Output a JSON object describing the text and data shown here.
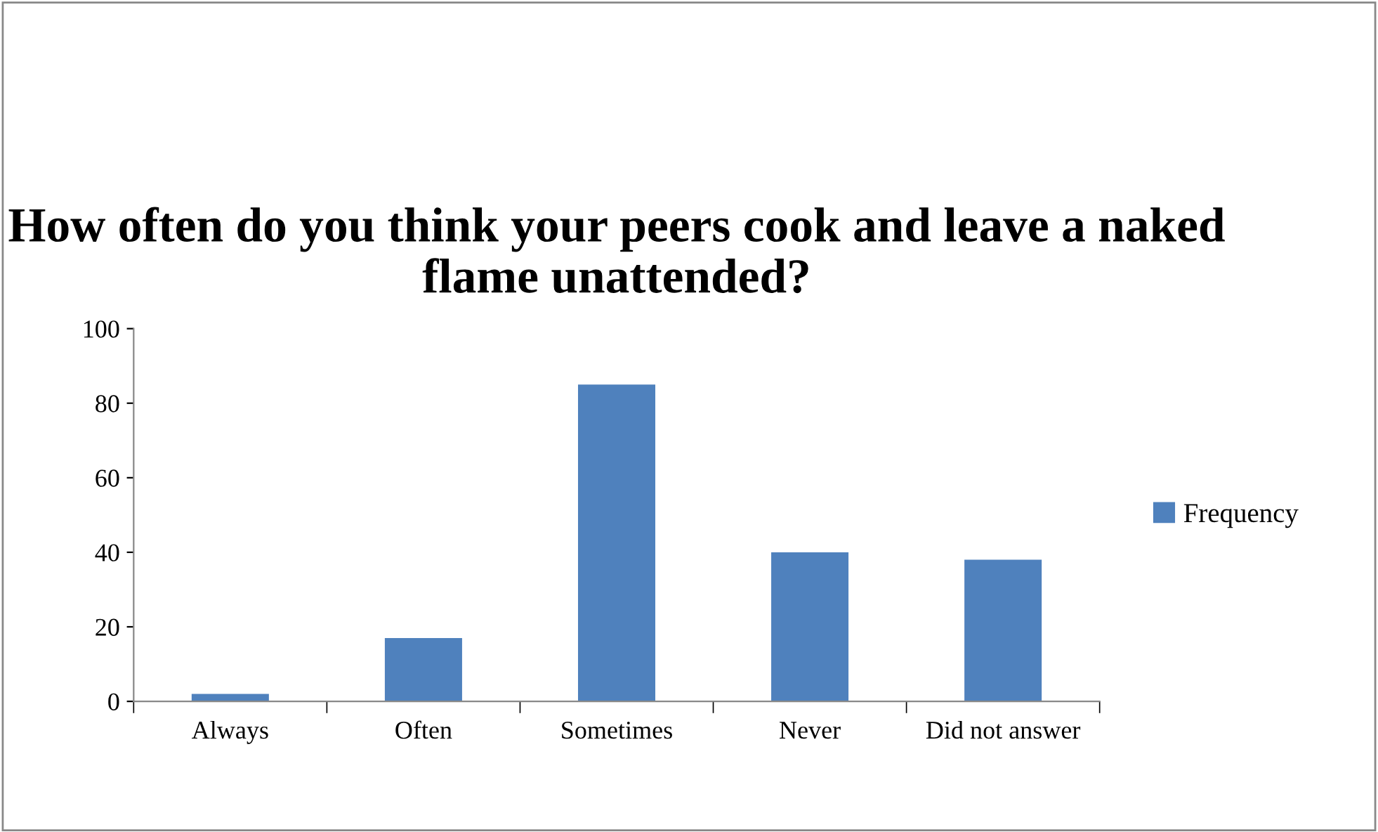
{
  "chart_data": {
    "type": "bar",
    "title": "How often do you think your peers cook and leave a naked flame unattended?",
    "categories": [
      "Always",
      "Often",
      "Sometimes",
      "Never",
      "Did not answer"
    ],
    "series": [
      {
        "name": "Frequency",
        "color": "#4f81bd",
        "values": [
          2,
          17,
          85,
          40,
          38
        ]
      }
    ],
    "ylim": [
      0,
      100
    ],
    "yticks": [
      0,
      20,
      40,
      60,
      80,
      100
    ],
    "grid": false,
    "legend": "right"
  }
}
